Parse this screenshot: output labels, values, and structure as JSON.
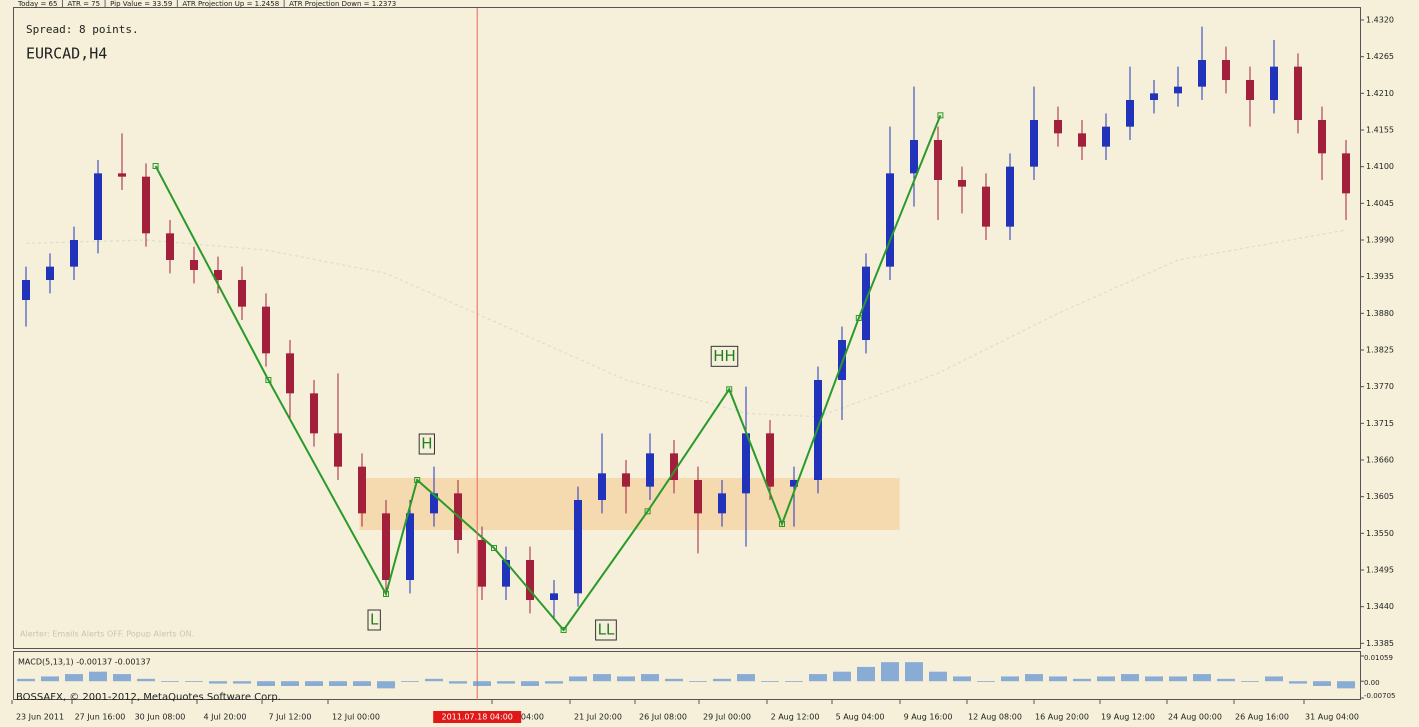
{
  "chart_data": {
    "type": "candlestick",
    "symbol": "EURCAD,H4",
    "spread": "Spread: 8 points.",
    "header": [
      "Today = 65",
      "ATR = 75",
      "Pip Value = 33.59",
      "ATR Projection Up = 1.2458",
      "ATR Projection Down = 1.2373"
    ],
    "alerter": "Alerter: Emails Alerts OFF. Popup Alerts ON.",
    "copyright": "BOSSAFX, © 2001-2012, MetaQuotes Software Corp.",
    "x_labels": [
      "23 Jun 2011",
      "27 Jun 16:00",
      "30 Jun 08:00",
      "4 Jul 20:00",
      "7 Jul 12:00",
      "12 Jul 00:00",
      "19 Jul 04:00",
      "21 Jul 20:00",
      "26 Jul 08:00",
      "29 Jul 00:00",
      "2 Aug 12:00",
      "5 Aug 04:00",
      "9 Aug 16:00",
      "12 Aug 08:00",
      "16 Aug 20:00",
      "19 Aug 12:00",
      "24 Aug 00:00",
      "26 Aug 16:00",
      "31 Aug 04:00"
    ],
    "cursor_label": "2011.07.18 04:00",
    "cursor_x": 18.8,
    "open": [
      1.39,
      1.393,
      1.395,
      1.399,
      1.409,
      1.4085,
      1.4,
      1.396,
      1.3945,
      1.393,
      1.389,
      1.382,
      1.376,
      1.37,
      1.365,
      1.358,
      1.348,
      1.358,
      1.361,
      1.354,
      1.347,
      1.351,
      1.345,
      1.346,
      1.36,
      1.364,
      1.362,
      1.367,
      1.363,
      1.358,
      1.361,
      1.37,
      1.362,
      1.363,
      1.378,
      1.384,
      1.395,
      1.409,
      1.414,
      1.408,
      1.407,
      1.401,
      1.41,
      1.417,
      1.415,
      1.413,
      1.416,
      1.42,
      1.421,
      1.422,
      1.426,
      1.423,
      1.42,
      1.425,
      1.417,
      1.412
    ],
    "high": [
      1.395,
      1.397,
      1.401,
      1.411,
      1.415,
      1.4105,
      1.402,
      1.398,
      1.3965,
      1.395,
      1.391,
      1.384,
      1.378,
      1.379,
      1.367,
      1.36,
      1.36,
      1.365,
      1.363,
      1.356,
      1.353,
      1.353,
      1.348,
      1.362,
      1.37,
      1.366,
      1.37,
      1.369,
      1.365,
      1.363,
      1.377,
      1.372,
      1.365,
      1.38,
      1.386,
      1.397,
      1.416,
      1.422,
      1.416,
      1.41,
      1.409,
      1.412,
      1.422,
      1.419,
      1.417,
      1.418,
      1.425,
      1.423,
      1.425,
      1.431,
      1.428,
      1.425,
      1.429,
      1.427,
      1.419,
      1.414
    ],
    "low": [
      1.386,
      1.391,
      1.393,
      1.397,
      1.4065,
      1.398,
      1.394,
      1.3925,
      1.391,
      1.387,
      1.38,
      1.372,
      1.368,
      1.363,
      1.356,
      1.346,
      1.346,
      1.356,
      1.352,
      1.345,
      1.345,
      1.343,
      1.342,
      1.344,
      1.358,
      1.358,
      1.36,
      1.361,
      1.352,
      1.356,
      1.353,
      1.36,
      1.356,
      1.361,
      1.372,
      1.382,
      1.393,
      1.404,
      1.402,
      1.403,
      1.399,
      1.399,
      1.408,
      1.413,
      1.411,
      1.411,
      1.414,
      1.418,
      1.419,
      1.42,
      1.421,
      1.416,
      1.418,
      1.415,
      1.408,
      1.402
    ],
    "close": [
      1.393,
      1.395,
      1.399,
      1.409,
      1.4085,
      1.4,
      1.396,
      1.3945,
      1.393,
      1.389,
      1.382,
      1.376,
      1.37,
      1.365,
      1.358,
      1.348,
      1.358,
      1.361,
      1.354,
      1.347,
      1.351,
      1.345,
      1.346,
      1.36,
      1.364,
      1.362,
      1.367,
      1.363,
      1.358,
      1.361,
      1.37,
      1.362,
      1.363,
      1.378,
      1.384,
      1.395,
      1.409,
      1.414,
      1.408,
      1.407,
      1.401,
      1.41,
      1.417,
      1.415,
      1.413,
      1.416,
      1.42,
      1.421,
      1.422,
      1.426,
      1.423,
      1.42,
      1.425,
      1.417,
      1.412,
      1.406
    ],
    "bull_color": "#2233bb",
    "bear_color": "#a3203c",
    "ylim": [
      1.3378,
      1.4338
    ],
    "yticks": [
      {
        "value": 1.432,
        "label": "1.4320"
      },
      1.4265,
      {
        "value": 1.421,
        "label": "1.4210"
      },
      1.4155,
      {
        "value": 1.41,
        "label": "1.4100"
      },
      1.4045,
      {
        "value": 1.399,
        "label": "1.3990"
      },
      1.3935,
      {
        "value": 1.388,
        "label": "1.3880"
      },
      1.3825,
      {
        "value": 1.377,
        "label": "1.3770"
      },
      1.3715,
      {
        "value": 1.366,
        "label": "1.3660"
      },
      1.3605,
      {
        "value": 1.355,
        "label": "1.3550"
      },
      1.3495,
      {
        "value": 1.344,
        "label": "1.3440"
      },
      1.3385
    ],
    "zigzag": {
      "color": "#2a9a2a",
      "x": [
        5.4,
        10.1,
        15.0,
        16.3,
        19.5,
        22.4,
        25.9,
        29.3,
        31.5,
        34.7,
        38.1
      ],
      "values": [
        1.4101,
        1.378,
        1.3459,
        1.363,
        1.3528,
        1.3405,
        1.3583,
        1.3766,
        1.3564,
        1.3873,
        1.4177
      ]
    },
    "pivot_labels": [
      "L",
      "H",
      "LL",
      "HH"
    ],
    "zone": {
      "color": "#f5d6a8",
      "x": [
        13.9,
        36.4
      ],
      "values": [
        1.3555,
        1.3633
      ]
    },
    "ma": {
      "color": "#dcdcd0",
      "x": [
        0,
        5,
        10,
        15,
        20,
        25,
        30,
        33,
        38,
        43,
        48,
        55
      ],
      "values": [
        1.3985,
        1.399,
        1.3975,
        1.394,
        1.386,
        1.378,
        1.373,
        1.3725,
        1.379,
        1.388,
        1.396,
        1.4005
      ]
    },
    "macd": {
      "title": "MACD(5,13,1) -0.00137 -0.00137",
      "color": "#5a8fd0",
      "values": [
        0.001,
        0.002,
        0.003,
        0.004,
        0.003,
        0.001,
        0.0,
        0.0,
        -0.001,
        -0.001,
        -0.002,
        -0.002,
        -0.002,
        -0.002,
        -0.002,
        -0.003,
        0.0,
        0.001,
        -0.001,
        -0.002,
        -0.001,
        -0.002,
        -0.001,
        0.002,
        0.003,
        0.002,
        0.003,
        0.001,
        0.0,
        0.001,
        0.003,
        0.0,
        0.0,
        0.003,
        0.004,
        0.006,
        0.008,
        0.008,
        0.004,
        0.002,
        0.0,
        0.002,
        0.003,
        0.002,
        0.001,
        0.002,
        0.003,
        0.002,
        0.002,
        0.003,
        0.001,
        0.0,
        0.002,
        -0.001,
        -0.002,
        -0.003
      ],
      "ylim": [
        -0.00705,
        0.01059
      ],
      "yticks": [
        0.01059,
        {
          "value": 0,
          "label": "0.00"
        },
        -0.00705
      ]
    }
  }
}
